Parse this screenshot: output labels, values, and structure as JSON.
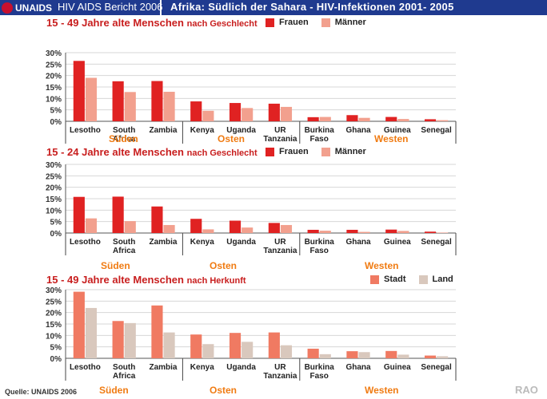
{
  "header": {
    "logo_text": "UNAIDS",
    "report": "HIV AIDS Bericht 2006",
    "title": "Afrika: Südlich der Sahara  -  HIV-Infektionen 2001- 2005"
  },
  "footer": {
    "source": "Quelle: UNAIDS 2006",
    "watermark": "RAO"
  },
  "colors": {
    "series1": "#e02222",
    "series2": "#f2a08e",
    "series3": "#f07a62",
    "series4": "#d9c8bd",
    "region": "#f07b12"
  },
  "chart_data": [
    {
      "type": "bar",
      "title": "15 - 49 Jahre alte Menschen",
      "subtitle": "nach Geschlecht",
      "categories": [
        "Lesotho",
        "South Africa",
        "Zambia",
        "Kenya",
        "Uganda",
        "UR Tanzania",
        "Burkina Faso",
        "Ghana",
        "Guinea",
        "Senegal"
      ],
      "series": [
        {
          "name": "Frauen",
          "values": [
            26.4,
            17.5,
            17.6,
            8.7,
            8.0,
            7.7,
            1.8,
            2.7,
            1.9,
            0.9
          ]
        },
        {
          "name": "Männer",
          "values": [
            19.0,
            12.8,
            12.9,
            4.6,
            5.8,
            6.3,
            1.9,
            1.5,
            1.0,
            0.5
          ]
        }
      ],
      "ylim": [
        0,
        30
      ],
      "yticks": [
        "30%",
        "25%",
        "20%",
        "15%",
        "10%",
        "5%",
        "0%"
      ],
      "regions": [
        "Süden",
        "Osten",
        "Westen"
      ]
    },
    {
      "type": "bar",
      "title": "15 - 24 Jahre alte Menschen",
      "subtitle": "nach Geschlecht",
      "categories": [
        "Lesotho",
        "South Africa",
        "Zambia",
        "Kenya",
        "Uganda",
        "UR Tanzania",
        "Burkina Faso",
        "Ghana",
        "Guinea",
        "Senegal"
      ],
      "series": [
        {
          "name": "Frauen",
          "values": [
            15.8,
            15.9,
            11.6,
            6.2,
            5.4,
            4.4,
            1.4,
            1.4,
            1.5,
            0.6
          ]
        },
        {
          "name": "Männer",
          "values": [
            6.4,
            5.2,
            3.5,
            1.6,
            2.4,
            3.5,
            1.0,
            0.5,
            0.9,
            0.2
          ]
        }
      ],
      "ylim": [
        0,
        30
      ],
      "yticks": [
        "30%",
        "25%",
        "20%",
        "15%",
        "10%",
        "5%",
        "0%"
      ],
      "regions": [
        "Süden",
        "Osten",
        "Westen"
      ]
    },
    {
      "type": "bar",
      "title": "15 - 49 Jahre alte Menschen",
      "subtitle": "nach Herkunft",
      "categories": [
        "Lesotho",
        "South Africa",
        "Zambia",
        "Kenya",
        "Uganda",
        "UR Tanzania",
        "Burkina Faso",
        "Ghana",
        "Guinea",
        "Senegal"
      ],
      "series": [
        {
          "name": "Stadt",
          "values": [
            29.1,
            16.3,
            23.1,
            10.4,
            11.1,
            11.3,
            4.2,
            3.1,
            3.2,
            1.2
          ]
        },
        {
          "name": "Land",
          "values": [
            22.0,
            15.4,
            11.3,
            6.2,
            7.2,
            5.7,
            1.8,
            2.7,
            1.6,
            0.9
          ]
        }
      ],
      "ylim": [
        0,
        30
      ],
      "yticks": [
        "30%",
        "25%",
        "20%",
        "15%",
        "10%",
        "5%",
        "0%"
      ],
      "regions": [
        "Süden",
        "Osten",
        "Westen"
      ]
    }
  ]
}
